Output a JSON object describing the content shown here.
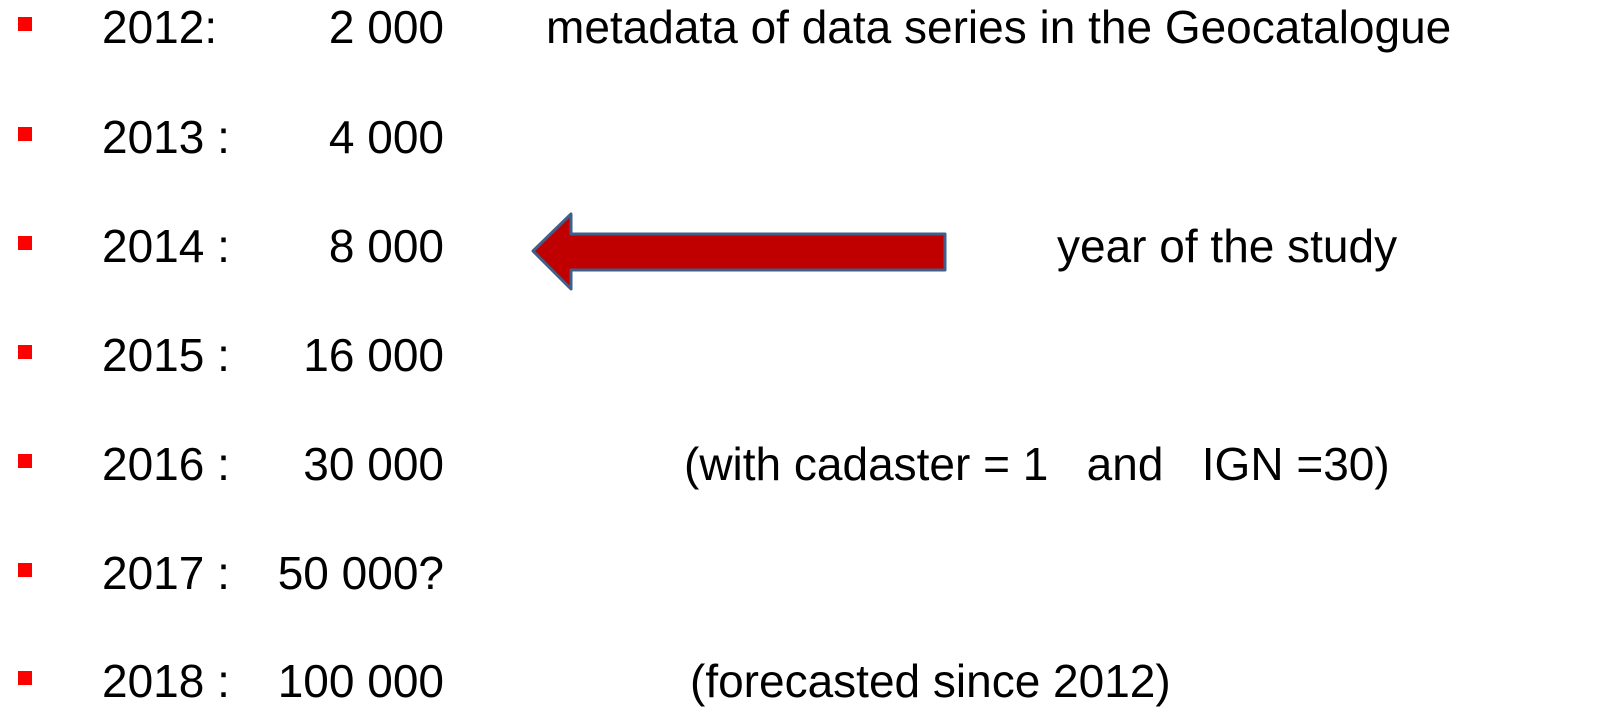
{
  "items": [
    {
      "year": "2012:",
      "count": "2 000",
      "note": "metadata of data series in the Geocatalogue"
    },
    {
      "year": "2013 :",
      "count": "4 000"
    },
    {
      "year": "2014 :",
      "count": "8 000",
      "note": "year of the study"
    },
    {
      "year": "2015 :",
      "count": "16 000"
    },
    {
      "year": "2016 :",
      "count": "30 000",
      "note": "(with cadaster = 1   and   IGN =30)"
    },
    {
      "year": "2017 :",
      "count": "50 000?"
    },
    {
      "year": "2018 :",
      "count": "100 000",
      "note": "(forecasted since 2012)"
    }
  ]
}
